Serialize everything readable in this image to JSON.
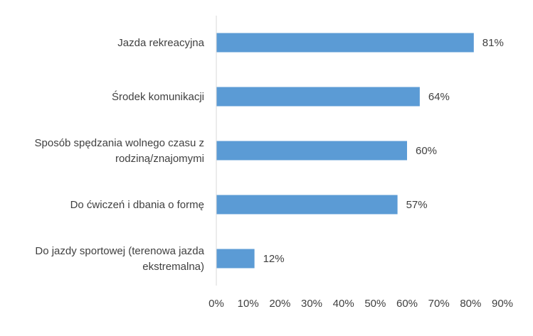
{
  "chart_data": {
    "type": "bar",
    "orientation": "horizontal",
    "categories": [
      "Jazda rekreacyjna",
      "Środek komunikacji",
      "Sposób spędzania wolnego czasu z rodziną/znajomymi",
      "Do ćwiczeń i dbania o formę",
      "Do jazdy sportowej (terenowa jazda ekstremalna)"
    ],
    "category_lines": [
      [
        "Jazda rekreacyjna"
      ],
      [
        "Środek komunikacji"
      ],
      [
        "Sposób spędzania wolnego czasu z",
        "rodziną/znajomymi"
      ],
      [
        "Do ćwiczeń i dbania o formę"
      ],
      [
        "Do jazdy sportowej (terenowa jazda",
        "ekstremalna)"
      ]
    ],
    "values": [
      81,
      64,
      60,
      57,
      12
    ],
    "data_labels": [
      "81%",
      "64%",
      "60%",
      "57%",
      "12%"
    ],
    "x_ticks": [
      0,
      10,
      20,
      30,
      40,
      50,
      60,
      70,
      80,
      90
    ],
    "x_tick_labels": [
      "0%",
      "10%",
      "20%",
      "30%",
      "40%",
      "50%",
      "60%",
      "70%",
      "80%",
      "90%"
    ],
    "xlim": [
      0,
      90
    ],
    "grid": false,
    "legend": "none",
    "title": "",
    "xlabel": "",
    "ylabel": "",
    "colors": {
      "bar": "#5B9BD5",
      "text": "#404040",
      "axis": "#D9D9D9"
    }
  }
}
